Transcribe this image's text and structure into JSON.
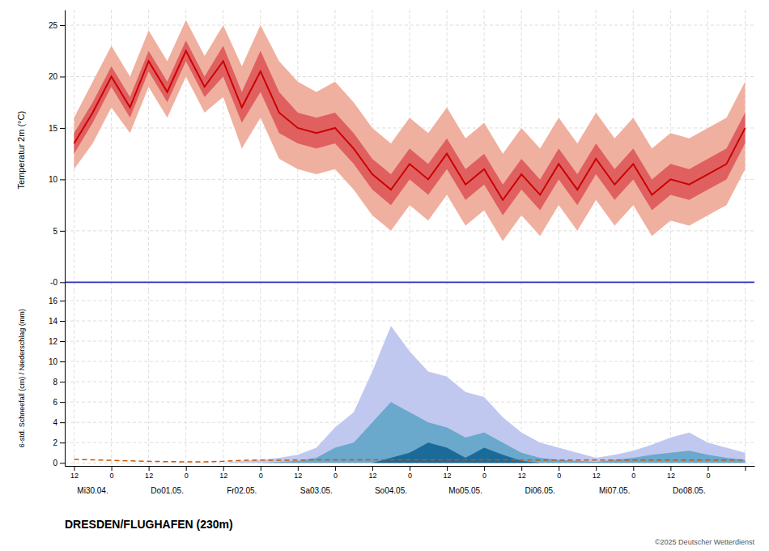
{
  "chart_data": [
    {
      "type": "line",
      "ylabel": "Temperatur 2m (°C)",
      "categories": [
        "12",
        null,
        "0",
        null,
        "12",
        null,
        "0",
        null,
        "12",
        null,
        "0",
        null,
        "12",
        null,
        "0",
        null,
        "12",
        null,
        "0",
        null,
        "12",
        null,
        "0",
        null,
        "12",
        null,
        "0",
        null,
        "12",
        null,
        "0",
        null,
        "12",
        null,
        "0",
        null,
        null
      ],
      "ylim": [
        -0.8,
        26.5
      ],
      "yticks": [
        {
          "value": 0,
          "label": "-0"
        },
        5,
        10,
        15,
        20,
        25
      ],
      "grid": true,
      "tick_labels": "y",
      "series": [
        {
          "type": "band",
          "color": "#f0b0a0",
          "low": [
            11.0,
            13.5,
            17.0,
            14.5,
            19.0,
            16.0,
            20.0,
            16.5,
            18.0,
            13.0,
            16.0,
            12.0,
            11.0,
            10.5,
            11.0,
            9.0,
            6.5,
            5.0,
            7.5,
            6.0,
            8.5,
            5.5,
            7.0,
            4.0,
            6.5,
            4.5,
            7.5,
            5.0,
            8.0,
            5.5,
            7.5,
            4.5,
            6.0,
            5.5,
            6.5,
            7.5,
            11.0
          ],
          "high": [
            16.0,
            19.5,
            23.0,
            20.0,
            24.5,
            21.5,
            25.5,
            22.0,
            25.0,
            21.0,
            25.0,
            21.5,
            19.5,
            18.5,
            19.5,
            17.5,
            15.0,
            13.5,
            16.0,
            14.5,
            17.0,
            14.0,
            15.5,
            12.5,
            15.0,
            13.0,
            16.0,
            13.5,
            16.5,
            14.0,
            16.0,
            13.0,
            14.5,
            14.0,
            15.0,
            16.0,
            19.5
          ]
        },
        {
          "type": "band",
          "color": "#e06060",
          "low": [
            12.5,
            15.5,
            19.0,
            16.0,
            20.5,
            17.5,
            21.5,
            18.0,
            20.0,
            15.5,
            18.5,
            14.5,
            13.5,
            13.0,
            13.5,
            11.5,
            9.0,
            7.5,
            10.0,
            8.5,
            11.0,
            8.0,
            9.5,
            6.5,
            9.0,
            7.0,
            10.0,
            7.5,
            10.5,
            8.0,
            10.0,
            7.0,
            8.5,
            8.0,
            9.0,
            10.0,
            13.5
          ],
          "high": [
            14.5,
            17.5,
            21.0,
            18.0,
            22.5,
            19.5,
            23.5,
            20.0,
            23.0,
            18.5,
            22.5,
            18.5,
            16.5,
            16.0,
            16.5,
            14.5,
            12.0,
            10.5,
            13.0,
            11.5,
            14.0,
            11.0,
            12.5,
            9.5,
            12.0,
            10.0,
            13.0,
            10.5,
            13.5,
            11.0,
            13.0,
            10.0,
            11.5,
            11.0,
            12.0,
            13.0,
            16.5
          ]
        },
        {
          "type": "line",
          "color": "#cc0000",
          "values": [
            13.5,
            16.5,
            20.0,
            17.0,
            21.5,
            18.5,
            22.5,
            19.0,
            21.5,
            17.0,
            20.5,
            16.5,
            15.0,
            14.5,
            15.0,
            13.0,
            10.5,
            9.0,
            11.5,
            10.0,
            12.5,
            9.5,
            11.0,
            8.0,
            10.5,
            8.5,
            11.5,
            9.0,
            12.0,
            9.5,
            11.5,
            8.5,
            10.0,
            9.5,
            10.5,
            11.5,
            15.0
          ]
        }
      ],
      "hline": {
        "y": 0,
        "color": "#3333bb"
      }
    },
    {
      "type": "area",
      "ylabel": "6-std. Schneefall (cm) / Niederschlag (mm)",
      "categories": [
        "12",
        null,
        "0",
        null,
        "12",
        null,
        "0",
        null,
        "12",
        null,
        "0",
        null,
        "12",
        null,
        "0",
        null,
        "12",
        null,
        "0",
        null,
        "12",
        null,
        "0",
        null,
        "12",
        null,
        "0",
        null,
        "12",
        null,
        "0",
        null,
        "12",
        null,
        "0",
        null,
        null
      ],
      "ylim": [
        -0.3,
        17.0
      ],
      "yticks": [
        0,
        2,
        4,
        6,
        8,
        10,
        12,
        14,
        16
      ],
      "grid": true,
      "series": [
        {
          "type": "area",
          "color": "#c0c8f0",
          "values": [
            0.0,
            0.0,
            0.0,
            0.0,
            0.0,
            0.0,
            0.0,
            0.0,
            0.0,
            0.2,
            0.3,
            0.5,
            0.8,
            1.5,
            3.5,
            5.0,
            9.0,
            13.5,
            11.0,
            9.0,
            8.5,
            7.0,
            6.5,
            4.5,
            3.0,
            2.0,
            1.5,
            1.0,
            0.5,
            0.8,
            1.2,
            1.8,
            2.5,
            3.0,
            2.0,
            1.5,
            1.0
          ]
        },
        {
          "type": "area",
          "color": "#6aa8cc",
          "values": [
            0.0,
            0.0,
            0.0,
            0.0,
            0.0,
            0.0,
            0.0,
            0.0,
            0.0,
            0.0,
            0.0,
            0.1,
            0.2,
            0.5,
            1.5,
            2.0,
            4.0,
            6.0,
            5.0,
            4.0,
            3.5,
            2.5,
            3.0,
            2.0,
            1.0,
            0.5,
            0.3,
            0.2,
            0.1,
            0.3,
            0.5,
            0.8,
            1.0,
            1.2,
            0.8,
            0.5,
            0.3
          ]
        },
        {
          "type": "area",
          "color": "#1a6a9a",
          "values": [
            0.0,
            0.0,
            0.0,
            0.0,
            0.0,
            0.0,
            0.0,
            0.0,
            0.0,
            0.0,
            0.0,
            0.0,
            0.0,
            0.0,
            0.0,
            0.0,
            0.0,
            0.5,
            1.0,
            2.0,
            1.5,
            0.5,
            1.5,
            0.8,
            0.2,
            0.0,
            0.0,
            0.0,
            0.0,
            0.0,
            0.0,
            0.0,
            0.0,
            0.0,
            0.0,
            0.0,
            0.0
          ]
        },
        {
          "type": "line",
          "color": "#cc5500",
          "line_style": "dashed",
          "values": [
            0.35,
            0.3,
            0.25,
            0.2,
            0.15,
            0.12,
            0.1,
            0.1,
            0.15,
            0.25,
            0.28,
            0.25,
            0.28,
            0.3,
            0.3,
            0.3,
            0.3,
            0.3,
            0.3,
            0.3,
            0.3,
            0.3,
            0.3,
            0.3,
            0.28,
            0.28,
            0.28,
            0.28,
            0.28,
            0.28,
            0.28,
            0.28,
            0.28,
            0.28,
            0.28,
            0.28,
            0.28
          ]
        }
      ],
      "annotations": [
        {
          "text": "Mi30.04.",
          "x": 1
        },
        {
          "text": "Do01.05.",
          "x": 5
        },
        {
          "text": "Fr02.05.",
          "x": 9
        },
        {
          "text": "Sa03.05.",
          "x": 13
        },
        {
          "text": "So04.05.",
          "x": 17
        },
        {
          "text": "Mo05.05.",
          "x": 21
        },
        {
          "text": "Di06.05.",
          "x": 25
        },
        {
          "text": "Mi07.05.",
          "x": 29
        },
        {
          "text": "Do08.05.",
          "x": 33
        }
      ],
      "caption": "DRESDEN/FLUGHAFEN (230m)",
      "source": "©2025 Deutscher Wetterdienst"
    }
  ]
}
